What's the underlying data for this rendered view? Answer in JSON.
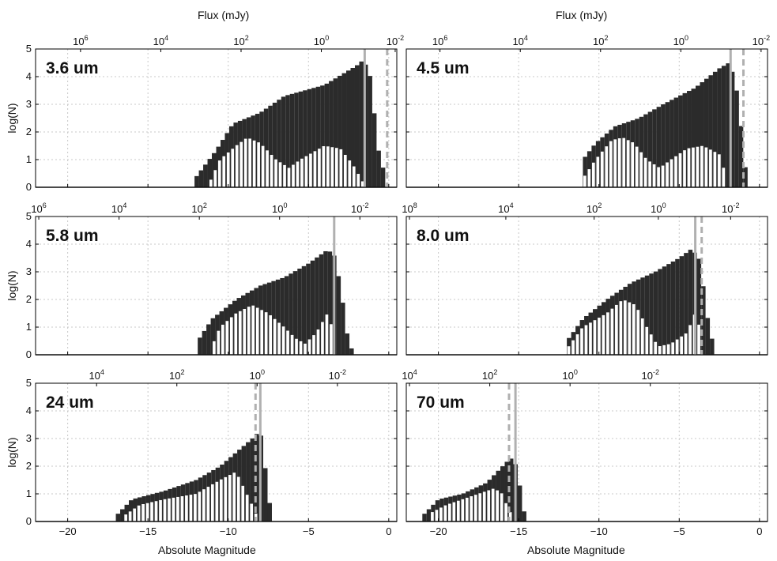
{
  "figure": {
    "top_axis_label": "Flux (mJy)",
    "x_axis_label": "Absolute Magnitude",
    "y_axis_label": "log(N)",
    "colors": {
      "total_bars": "#2b2b2b",
      "subset_bars": "#ffffff",
      "completeness_line": "#b0b0b0",
      "grid": "#c8c8c8",
      "axis": "#000000"
    }
  },
  "chart_data": [
    {
      "type": "bar",
      "title": "3.6 um",
      "xlim": [
        -22,
        0.5
      ],
      "ylim": [
        0,
        5
      ],
      "xticks": [
        -20,
        -15,
        -10,
        -5,
        0
      ],
      "yticks": [
        0,
        1,
        2,
        3,
        4,
        5
      ],
      "top_ticks": [
        {
          "label": "10^6",
          "mag": -19.2
        },
        {
          "label": "10^4",
          "mag": -14.2
        },
        {
          "label": "10^2",
          "mag": -9.2
        },
        {
          "label": "10^0",
          "mag": -4.2
        },
        {
          "label": "10^-2",
          "mag": 0.4
        }
      ],
      "solid_line_mag": -1.5,
      "dashed_line_mag": -0.1,
      "series": [
        {
          "name": "",
          "points": [
            [
              -12.1,
              0.3
            ],
            [
              -10.8,
              1.3
            ],
            [
              -9.7,
              2.3
            ],
            [
              -8.0,
              2.7
            ],
            [
              -6.5,
              3.3
            ],
            [
              -4.0,
              3.7
            ],
            [
              -2.0,
              4.4
            ],
            [
              -1.6,
              4.6
            ],
            [
              -1.2,
              4.2
            ],
            [
              -0.6,
              1.2
            ],
            [
              -0.1,
              0.2
            ]
          ]
        },
        {
          "name": "",
          "points": [
            [
              -11.2,
              0.1
            ],
            [
              -10.5,
              1.0
            ],
            [
              -9.5,
              1.5
            ],
            [
              -8.8,
              1.8
            ],
            [
              -8.0,
              1.6
            ],
            [
              -7.0,
              1.0
            ],
            [
              -6.2,
              0.7
            ],
            [
              -5.5,
              1.0
            ],
            [
              -4.0,
              1.5
            ],
            [
              -3.0,
              1.4
            ],
            [
              -2.2,
              0.8
            ],
            [
              -1.6,
              0.2
            ]
          ]
        }
      ]
    },
    {
      "type": "bar",
      "title": "4.5 um",
      "xlim": [
        -22,
        0.5
      ],
      "ylim": [
        0,
        5
      ],
      "xticks": [
        -20,
        -15,
        -10,
        -5,
        0
      ],
      "yticks": [
        0,
        1,
        2,
        3,
        4,
        5
      ],
      "top_ticks": [
        {
          "label": "10^6",
          "mag": -19.9
        },
        {
          "label": "10^4",
          "mag": -14.9
        },
        {
          "label": "10^2",
          "mag": -9.9
        },
        {
          "label": "10^0",
          "mag": -4.9
        },
        {
          "label": "10^-2",
          "mag": 0.1
        }
      ],
      "solid_line_mag": -1.8,
      "dashed_line_mag": -1.0,
      "series": [
        {
          "name": "",
          "points": [
            [
              -11.0,
              1.0
            ],
            [
              -10.2,
              1.6
            ],
            [
              -9.0,
              2.2
            ],
            [
              -7.5,
              2.5
            ],
            [
              -6.0,
              3.0
            ],
            [
              -4.0,
              3.6
            ],
            [
              -2.5,
              4.3
            ],
            [
              -1.9,
              4.5
            ],
            [
              -1.5,
              3.9
            ],
            [
              -1.1,
              2.0
            ],
            [
              -0.8,
              0.3
            ]
          ]
        },
        {
          "name": "",
          "points": [
            [
              -11.0,
              0.3
            ],
            [
              -10.2,
              1.0
            ],
            [
              -9.2,
              1.7
            ],
            [
              -8.5,
              1.8
            ],
            [
              -7.8,
              1.6
            ],
            [
              -7.0,
              1.0
            ],
            [
              -6.2,
              0.7
            ],
            [
              -5.5,
              1.0
            ],
            [
              -4.5,
              1.4
            ],
            [
              -3.5,
              1.5
            ],
            [
              -2.5,
              1.2
            ],
            [
              -2.0,
              0.3
            ]
          ]
        }
      ]
    },
    {
      "type": "bar",
      "title": "5.8 um",
      "xlim": [
        -22,
        0.5
      ],
      "ylim": [
        0,
        5
      ],
      "xticks": [
        -20,
        -15,
        -10,
        -5,
        0
      ],
      "yticks": [
        0,
        1,
        2,
        3,
        4,
        5
      ],
      "top_ticks": [
        {
          "label": "10^6",
          "mag": -21.8
        },
        {
          "label": "10^4",
          "mag": -16.8
        },
        {
          "label": "10^2",
          "mag": -11.8
        },
        {
          "label": "10^0",
          "mag": -6.8
        },
        {
          "label": "10^-2",
          "mag": -1.8
        }
      ],
      "solid_line_mag": -3.4,
      "series": [
        {
          "name": "",
          "points": [
            [
              -11.9,
              0.5
            ],
            [
              -11.0,
              1.3
            ],
            [
              -9.5,
              2.0
            ],
            [
              -8.0,
              2.5
            ],
            [
              -6.5,
              2.8
            ],
            [
              -5.0,
              3.3
            ],
            [
              -3.8,
              3.8
            ],
            [
              -3.4,
              3.6
            ],
            [
              -3.0,
              2.5
            ],
            [
              -2.6,
              0.8
            ],
            [
              -2.3,
              0.2
            ]
          ]
        },
        {
          "name": "",
          "points": [
            [
              -11.0,
              0.3
            ],
            [
              -10.5,
              1.0
            ],
            [
              -9.5,
              1.5
            ],
            [
              -8.5,
              1.8
            ],
            [
              -7.5,
              1.5
            ],
            [
              -6.5,
              1.0
            ],
            [
              -5.8,
              0.6
            ],
            [
              -5.2,
              0.4
            ],
            [
              -4.5,
              0.8
            ],
            [
              -3.8,
              1.5
            ],
            [
              -3.4,
              0.8
            ]
          ]
        }
      ]
    },
    {
      "type": "bar",
      "title": "8.0 um",
      "xlim": [
        -22,
        0.5
      ],
      "ylim": [
        0,
        5
      ],
      "xticks": [
        -20,
        -15,
        -10,
        -5,
        0
      ],
      "yticks": [
        0,
        1,
        2,
        3,
        4,
        5
      ],
      "top_ticks": [
        {
          "label": "10^8",
          "mag": -21.8
        },
        {
          "label": "10^4",
          "mag": -15.8
        },
        {
          "label": "10^2",
          "mag": -10.3
        },
        {
          "label": "10^0",
          "mag": -6.3
        },
        {
          "label": "10^-2",
          "mag": -1.8
        }
      ],
      "solid_line_mag": -4.0,
      "dashed_line_mag": -3.6,
      "series": [
        {
          "name": "",
          "points": [
            [
              -12.0,
              0.5
            ],
            [
              -11.0,
              1.3
            ],
            [
              -9.5,
              2.0
            ],
            [
              -8.0,
              2.6
            ],
            [
              -6.5,
              3.0
            ],
            [
              -5.0,
              3.5
            ],
            [
              -4.3,
              3.8
            ],
            [
              -3.8,
              3.6
            ],
            [
              -3.5,
              2.5
            ],
            [
              -3.1,
              0.8
            ],
            [
              -2.7,
              0.2
            ]
          ]
        },
        {
          "name": "",
          "points": [
            [
              -12.0,
              0.2
            ],
            [
              -11.0,
              1.0
            ],
            [
              -9.5,
              1.5
            ],
            [
              -8.5,
              2.0
            ],
            [
              -7.7,
              1.8
            ],
            [
              -7.0,
              1.0
            ],
            [
              -6.3,
              0.3
            ],
            [
              -5.5,
              0.4
            ],
            [
              -4.5,
              0.8
            ],
            [
              -4.0,
              1.5
            ],
            [
              -3.6,
              0.8
            ]
          ]
        }
      ]
    },
    {
      "type": "bar",
      "title": "24 um",
      "xlim": [
        -22,
        0.5
      ],
      "ylim": [
        0,
        5
      ],
      "xticks": [
        -20,
        -15,
        -10,
        -5,
        0
      ],
      "yticks": [
        0,
        1,
        2,
        3,
        4,
        5
      ],
      "top_ticks": [
        {
          "label": "10^4",
          "mag": -18.2
        },
        {
          "label": "10^2",
          "mag": -13.2
        },
        {
          "label": "10^0",
          "mag": -8.2
        },
        {
          "label": "10^-2",
          "mag": -3.2
        }
      ],
      "solid_line_mag": -8.0,
      "dashed_line_mag": -8.3,
      "series": [
        {
          "name": "",
          "points": [
            [
              -17.0,
              0.2
            ],
            [
              -16.0,
              0.8
            ],
            [
              -14.0,
              1.1
            ],
            [
              -12.0,
              1.5
            ],
            [
              -10.5,
              2.0
            ],
            [
              -9.5,
              2.5
            ],
            [
              -8.5,
              3.0
            ],
            [
              -8.0,
              3.3
            ],
            [
              -7.7,
              2.0
            ],
            [
              -7.4,
              0.6
            ],
            [
              -7.2,
              0.2
            ]
          ]
        },
        {
          "name": "",
          "points": [
            [
              -16.5,
              0.2
            ],
            [
              -15.5,
              0.6
            ],
            [
              -14.0,
              0.8
            ],
            [
              -12.0,
              1.0
            ],
            [
              -10.5,
              1.5
            ],
            [
              -9.5,
              1.8
            ],
            [
              -9.0,
              1.2
            ],
            [
              -8.5,
              0.6
            ],
            [
              -8.2,
              0.2
            ]
          ]
        }
      ]
    },
    {
      "type": "bar",
      "title": "70 um",
      "xlim": [
        -22,
        0.5
      ],
      "ylim": [
        0,
        5
      ],
      "xticks": [
        -20,
        -15,
        -10,
        -5,
        0
      ],
      "yticks": [
        0,
        1,
        2,
        3,
        4,
        5
      ],
      "top_ticks": [
        {
          "label": "10^4",
          "mag": -21.8
        },
        {
          "label": "10^2",
          "mag": -16.8
        },
        {
          "label": "10^0",
          "mag": -11.8
        },
        {
          "label": "10^-2",
          "mag": -6.8
        }
      ],
      "solid_line_mag": -15.2,
      "dashed_line_mag": -15.6,
      "series": [
        {
          "name": "",
          "points": [
            [
              -21.0,
              0.2
            ],
            [
              -20.0,
              0.8
            ],
            [
              -18.5,
              1.0
            ],
            [
              -17.0,
              1.4
            ],
            [
              -16.0,
              2.0
            ],
            [
              -15.5,
              2.3
            ],
            [
              -15.1,
              2.0
            ],
            [
              -14.8,
              0.8
            ],
            [
              -14.6,
              0.2
            ]
          ]
        },
        {
          "name": "",
          "points": [
            [
              -20.5,
              0.3
            ],
            [
              -19.5,
              0.6
            ],
            [
              -18.5,
              0.8
            ],
            [
              -17.5,
              1.0
            ],
            [
              -16.5,
              1.2
            ],
            [
              -16.0,
              1.0
            ],
            [
              -15.6,
              0.4
            ],
            [
              -15.3,
              0.2
            ]
          ]
        }
      ]
    }
  ]
}
